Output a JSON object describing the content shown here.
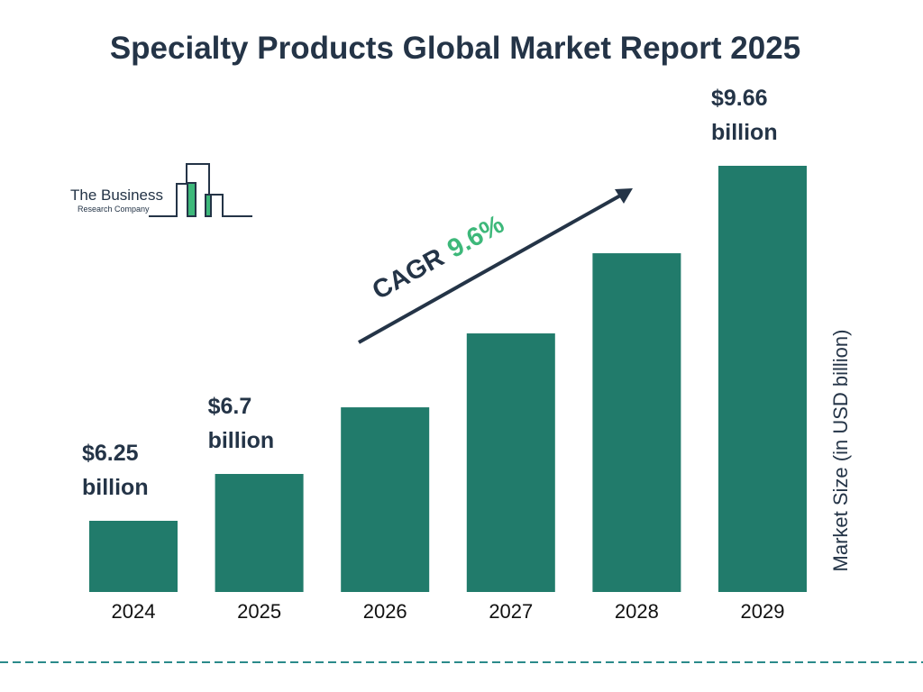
{
  "chart_data": {
    "type": "bar",
    "title": "Specialty Products Global Market Report 2025",
    "categories": [
      "2024",
      "2025",
      "2026",
      "2027",
      "2028",
      "2029"
    ],
    "values": [
      6.25,
      6.7,
      7.34,
      8.05,
      8.82,
      9.66
    ],
    "value_labels": [
      "$6.25 billion",
      "$6.7 billion",
      null,
      null,
      null,
      "$9.66 billion"
    ],
    "color": "#217b6b",
    "y_axis_label": "Market Size (in USD billion)",
    "annotation": {
      "label": "CAGR",
      "value": "9.6%",
      "value_color": "#3db87a"
    },
    "logo": {
      "line1": "The Business",
      "line2": "Research Company"
    }
  }
}
